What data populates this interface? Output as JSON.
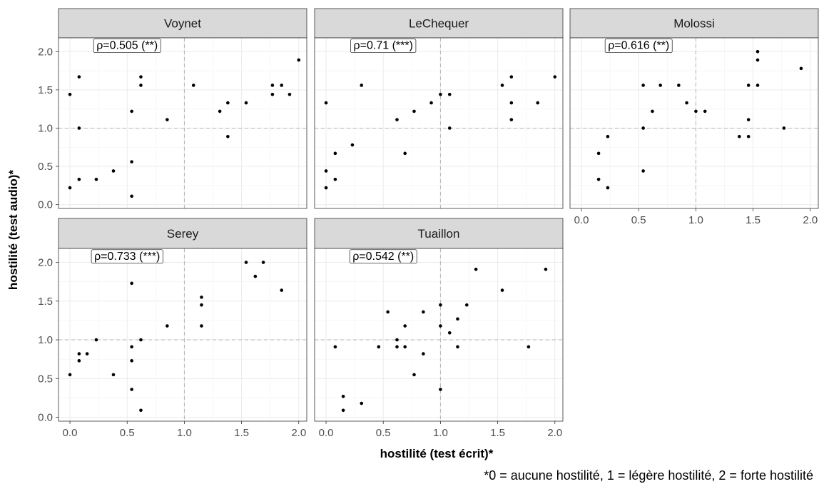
{
  "chart_data": {
    "type": "scatter",
    "xlabel": "hostilité (test écrit)*",
    "ylabel": "hostilité (test audio)*",
    "footnote": "*0 = aucune hostilité, 1 = légère hostilité, 2 = forte hostilité",
    "xlim": [
      -0.1,
      2.07
    ],
    "ylim": [
      -0.05,
      2.18
    ],
    "x_ticks": [
      0.0,
      0.5,
      1.0,
      1.5,
      2.0
    ],
    "x_tick_labels": [
      "0.0",
      "0.5",
      "1.0",
      "1.5",
      "2.0"
    ],
    "y_ticks": [
      0.0,
      0.5,
      1.0,
      1.5,
      2.0
    ],
    "y_tick_labels": [
      "0.0",
      "0.5",
      "1.0",
      "1.5",
      "2.0"
    ],
    "reference_lines": {
      "x": 1.0,
      "y": 1.0,
      "style": "dashed"
    },
    "grid": true,
    "panels": [
      {
        "name": "Voynet",
        "annotation": "ρ=0.505 (**)",
        "points": [
          [
            0.0,
            1.44
          ],
          [
            0.0,
            0.22
          ],
          [
            0.08,
            1.67
          ],
          [
            0.08,
            1.0
          ],
          [
            0.08,
            0.33
          ],
          [
            0.23,
            0.33
          ],
          [
            0.38,
            0.44
          ],
          [
            0.54,
            1.22
          ],
          [
            0.54,
            0.56
          ],
          [
            0.54,
            0.11
          ],
          [
            0.62,
            1.67
          ],
          [
            0.62,
            1.56
          ],
          [
            0.85,
            1.11
          ],
          [
            1.08,
            1.56
          ],
          [
            1.31,
            1.22
          ],
          [
            1.38,
            1.33
          ],
          [
            1.38,
            0.89
          ],
          [
            1.54,
            1.33
          ],
          [
            1.77,
            1.56
          ],
          [
            1.77,
            1.44
          ],
          [
            1.85,
            1.56
          ],
          [
            1.92,
            1.44
          ],
          [
            2.0,
            1.89
          ]
        ]
      },
      {
        "name": "LeChequer",
        "annotation": "ρ=0.71 (***)",
        "points": [
          [
            0.0,
            1.33
          ],
          [
            0.0,
            0.44
          ],
          [
            0.0,
            0.22
          ],
          [
            0.08,
            0.67
          ],
          [
            0.08,
            0.33
          ],
          [
            0.23,
            0.78
          ],
          [
            0.31,
            1.56
          ],
          [
            0.62,
            1.11
          ],
          [
            0.69,
            0.67
          ],
          [
            0.77,
            1.22
          ],
          [
            0.92,
            1.33
          ],
          [
            1.0,
            1.44
          ],
          [
            1.08,
            1.44
          ],
          [
            1.08,
            1.0
          ],
          [
            1.54,
            1.56
          ],
          [
            1.62,
            1.67
          ],
          [
            1.62,
            1.33
          ],
          [
            1.62,
            1.11
          ],
          [
            1.85,
            1.33
          ],
          [
            2.0,
            1.67
          ]
        ]
      },
      {
        "name": "Molossi",
        "annotation": "ρ=0.616 (**)",
        "points": [
          [
            0.15,
            0.67
          ],
          [
            0.15,
            0.33
          ],
          [
            0.23,
            0.89
          ],
          [
            0.23,
            0.22
          ],
          [
            0.54,
            1.56
          ],
          [
            0.54,
            1.0
          ],
          [
            0.54,
            0.44
          ],
          [
            0.62,
            1.22
          ],
          [
            0.69,
            1.56
          ],
          [
            0.85,
            1.56
          ],
          [
            0.92,
            1.33
          ],
          [
            1.0,
            1.22
          ],
          [
            1.08,
            1.22
          ],
          [
            1.38,
            0.89
          ],
          [
            1.46,
            1.56
          ],
          [
            1.46,
            1.11
          ],
          [
            1.46,
            0.89
          ],
          [
            1.54,
            2.0
          ],
          [
            1.54,
            1.89
          ],
          [
            1.54,
            1.56
          ],
          [
            1.77,
            1.0
          ],
          [
            1.92,
            1.78
          ]
        ]
      },
      {
        "name": "Serey",
        "annotation": "ρ=0.733 (***)",
        "points": [
          [
            0.0,
            0.55
          ],
          [
            0.08,
            0.82
          ],
          [
            0.08,
            0.73
          ],
          [
            0.15,
            0.82
          ],
          [
            0.23,
            1.0
          ],
          [
            0.38,
            0.55
          ],
          [
            0.54,
            1.73
          ],
          [
            0.54,
            0.91
          ],
          [
            0.54,
            0.73
          ],
          [
            0.54,
            0.36
          ],
          [
            0.62,
            1.0
          ],
          [
            0.62,
            0.09
          ],
          [
            0.85,
            1.18
          ],
          [
            1.15,
            1.55
          ],
          [
            1.15,
            1.45
          ],
          [
            1.15,
            1.18
          ],
          [
            1.54,
            2.0
          ],
          [
            1.62,
            1.82
          ],
          [
            1.69,
            2.0
          ],
          [
            1.85,
            1.64
          ]
        ]
      },
      {
        "name": "Tuaillon",
        "annotation": "ρ=0.542 (**)",
        "points": [
          [
            0.08,
            0.91
          ],
          [
            0.15,
            0.27
          ],
          [
            0.15,
            0.09
          ],
          [
            0.31,
            0.18
          ],
          [
            0.46,
            0.91
          ],
          [
            0.54,
            1.36
          ],
          [
            0.62,
            1.0
          ],
          [
            0.62,
            0.91
          ],
          [
            0.69,
            1.18
          ],
          [
            0.69,
            0.91
          ],
          [
            0.77,
            0.55
          ],
          [
            0.85,
            1.36
          ],
          [
            0.85,
            0.82
          ],
          [
            1.0,
            1.45
          ],
          [
            1.0,
            1.18
          ],
          [
            1.0,
            0.36
          ],
          [
            1.08,
            1.09
          ],
          [
            1.15,
            1.27
          ],
          [
            1.15,
            0.91
          ],
          [
            1.23,
            1.45
          ],
          [
            1.31,
            1.91
          ],
          [
            1.54,
            1.64
          ],
          [
            1.77,
            0.91
          ],
          [
            1.92,
            1.91
          ]
        ]
      }
    ]
  }
}
